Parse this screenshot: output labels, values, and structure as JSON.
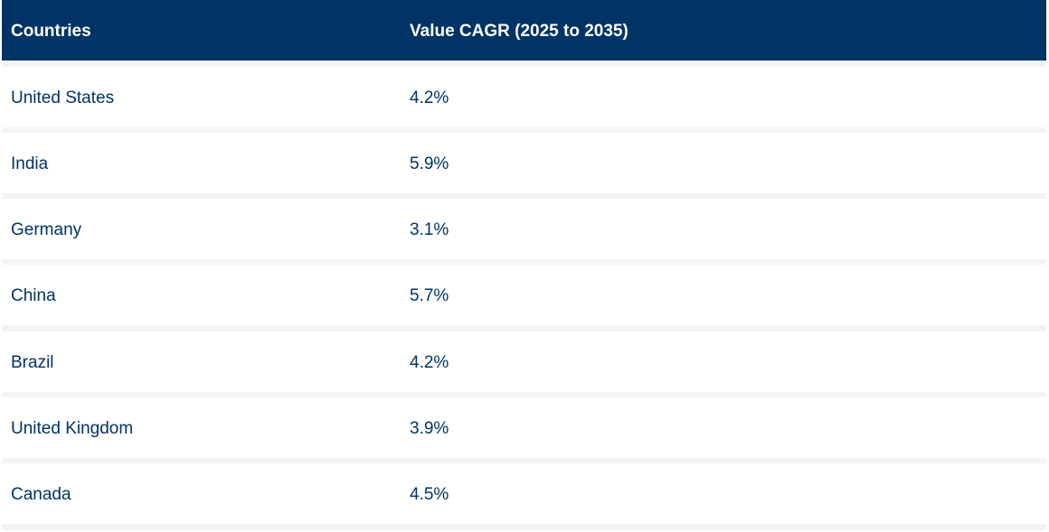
{
  "table": {
    "headers": {
      "country": "Countries",
      "value": "Value CAGR (2025 to 2035)"
    },
    "rows": [
      {
        "country": "United States",
        "value": "4.2%"
      },
      {
        "country": "India",
        "value": "5.9%"
      },
      {
        "country": "Germany",
        "value": "3.1%"
      },
      {
        "country": "China",
        "value": "5.7%"
      },
      {
        "country": "Brazil",
        "value": "4.2%"
      },
      {
        "country": "United Kingdom",
        "value": "3.9%"
      },
      {
        "country": "Canada",
        "value": "4.5%"
      }
    ]
  },
  "colors": {
    "header_bg": "#003366",
    "header_text": "#ffffff",
    "row_text": "#003366",
    "row_separator": "#f4f4f4"
  }
}
